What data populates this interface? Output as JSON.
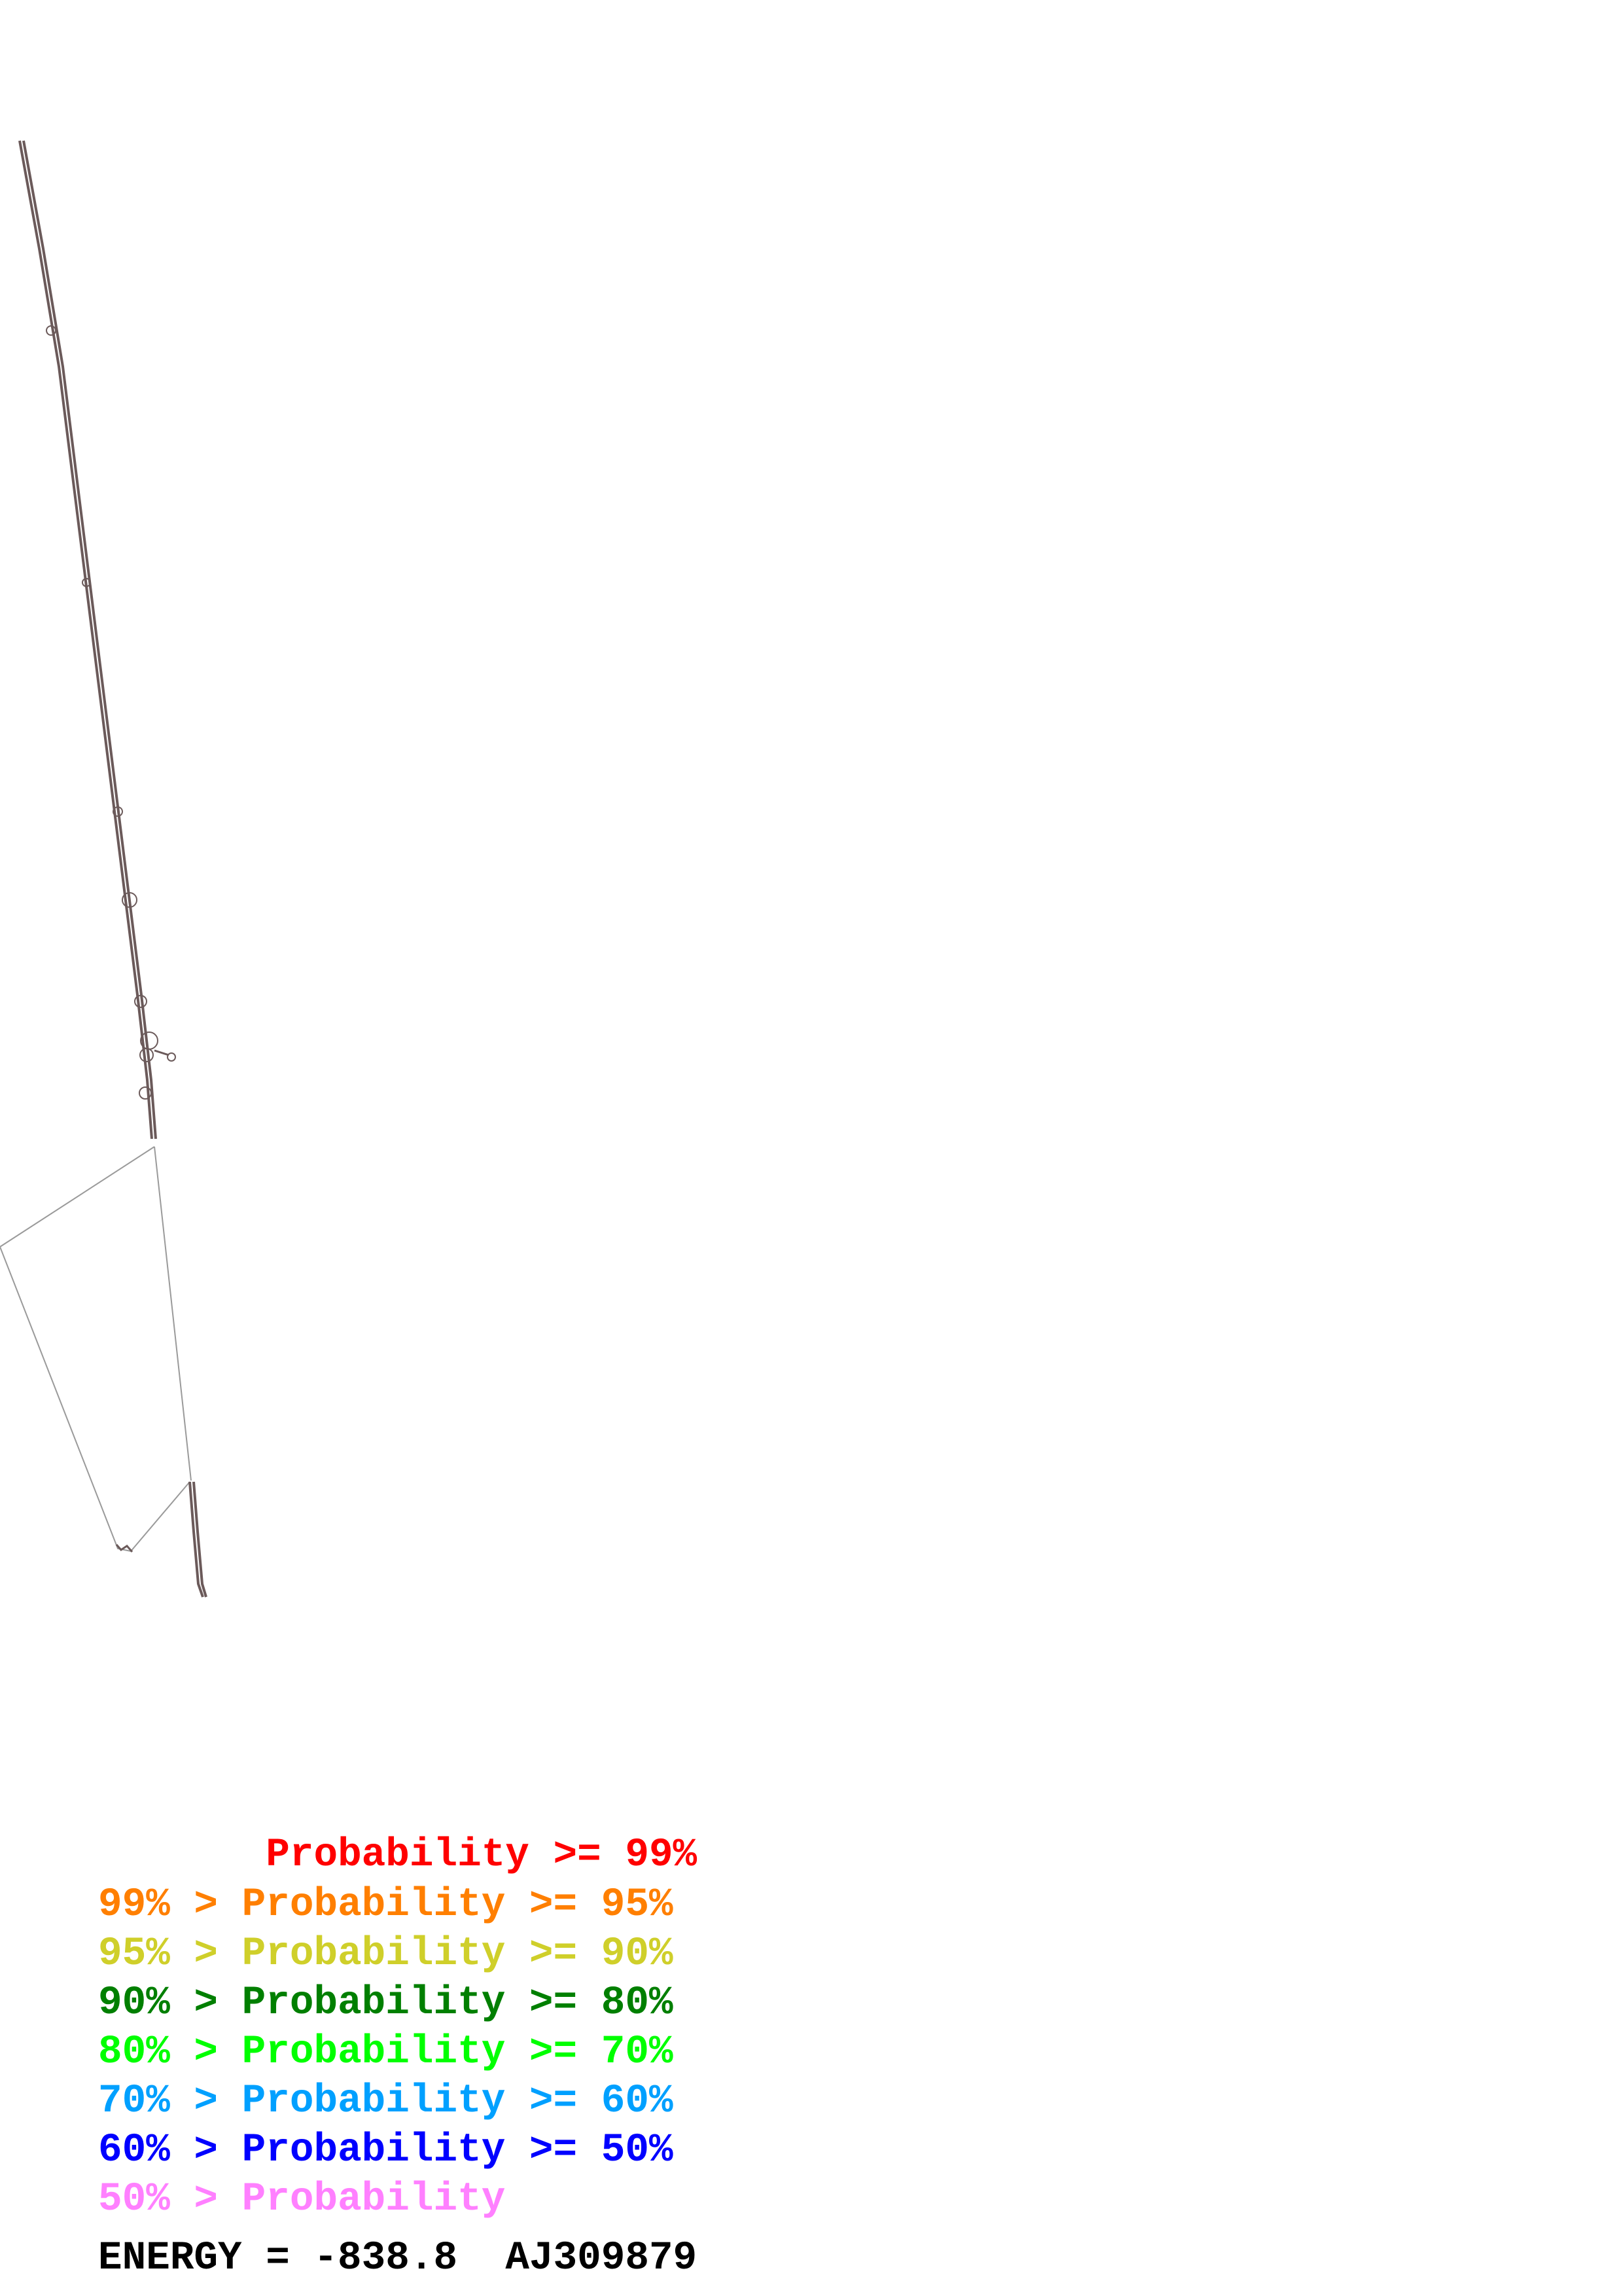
{
  "legend": [
    {
      "prefix": "       ",
      "label": "Probability >= 99%",
      "color": "#ff0000"
    },
    {
      "prefix": "99% > ",
      "label": "Probability >= 95%",
      "color": "#ff7f00"
    },
    {
      "prefix": "95% > ",
      "label": "Probability >= 90%",
      "color": "#cfcf2a"
    },
    {
      "prefix": "90% > ",
      "label": "Probability >= 80%",
      "color": "#007f00"
    },
    {
      "prefix": "80% > ",
      "label": "Probability >= 70%",
      "color": "#00ff00"
    },
    {
      "prefix": "70% > ",
      "label": "Probability >= 60%",
      "color": "#00a0ff"
    },
    {
      "prefix": "60% > ",
      "label": "Probability >= 50%",
      "color": "#0000ff"
    },
    {
      "prefix": "50% > ",
      "label": "Probability",
      "color": "#ff80ff"
    }
  ],
  "energy_label": "ENERGY = -838.8",
  "sequence_id": "AJ309879",
  "structure_color": "#6b5a5a"
}
